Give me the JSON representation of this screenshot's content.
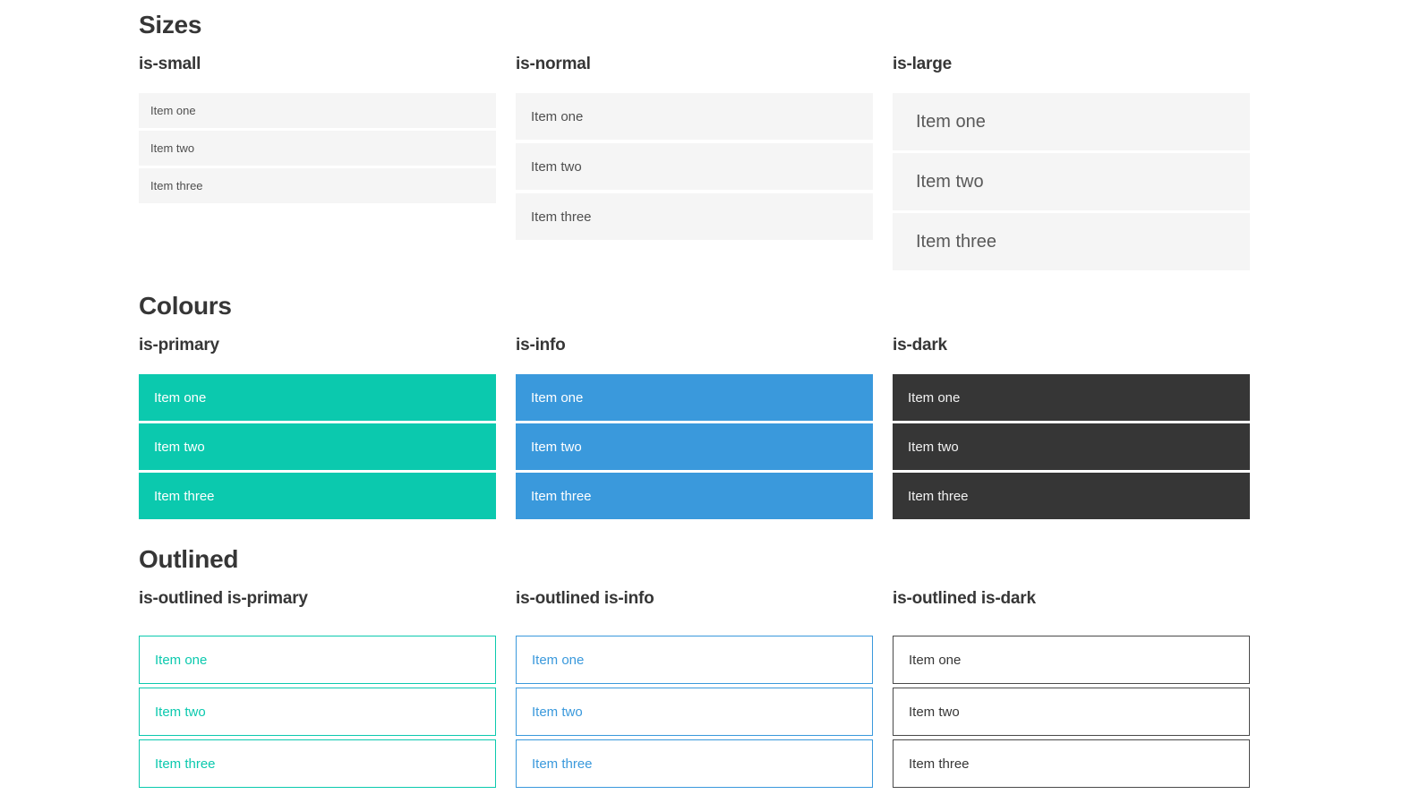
{
  "colors": {
    "primary": "#0bc9ae",
    "info": "#3a99dc",
    "dark": "#363636",
    "item_bg": "#f5f5f5",
    "item_text": "#4f4f4f",
    "heading": "#363636"
  },
  "sections": [
    {
      "title": "Sizes",
      "groups": [
        {
          "label": "is-small",
          "items": [
            "Item one",
            "Item two",
            "Item three"
          ]
        },
        {
          "label": "is-normal",
          "items": [
            "Item one",
            "Item two",
            "Item three"
          ]
        },
        {
          "label": "is-large",
          "items": [
            "Item one",
            "Item two",
            "Item three"
          ]
        }
      ]
    },
    {
      "title": "Colours",
      "groups": [
        {
          "label": "is-primary",
          "items": [
            "Item one",
            "Item two",
            "Item three"
          ]
        },
        {
          "label": "is-info",
          "items": [
            "Item one",
            "Item two",
            "Item three"
          ]
        },
        {
          "label": "is-dark",
          "items": [
            "Item one",
            "Item two",
            "Item three"
          ]
        }
      ]
    },
    {
      "title": "Outlined",
      "groups": [
        {
          "label": "is-outlined is-primary",
          "items": [
            "Item one",
            "Item two",
            "Item three"
          ]
        },
        {
          "label": "is-outlined is-info",
          "items": [
            "Item one",
            "Item two",
            "Item three"
          ]
        },
        {
          "label": "is-outlined is-dark",
          "items": [
            "Item one",
            "Item two",
            "Item three"
          ]
        }
      ]
    }
  ]
}
